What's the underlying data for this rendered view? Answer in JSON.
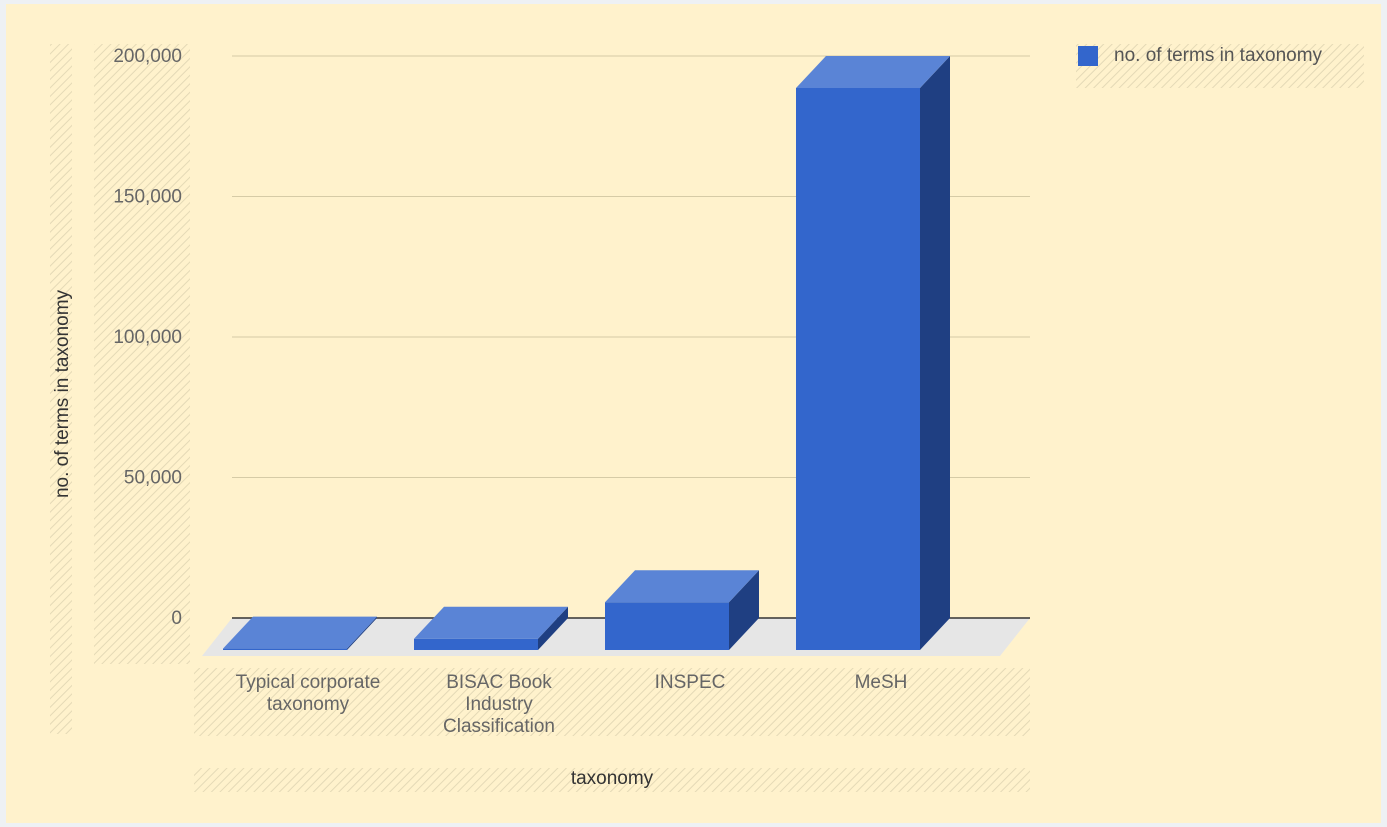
{
  "chart_data": {
    "type": "bar",
    "style": "3d",
    "categories": [
      "Typical corporate taxonomy",
      "BISAC Book Industry Classification",
      "INSPEC",
      "MeSH"
    ],
    "category_lines": [
      [
        "Typical corporate",
        "taxonomy"
      ],
      [
        "BISAC Book",
        "Industry",
        "Classification"
      ],
      [
        "INSPEC"
      ],
      [
        "MeSH"
      ]
    ],
    "series": [
      {
        "name": "no. of terms in taxonomy",
        "values": [
          500,
          4000,
          17000,
          200000
        ]
      }
    ],
    "xlabel": "taxonomy",
    "ylabel": "no. of terms in taxonomy",
    "ylim": [
      0,
      200000
    ],
    "yticks": [
      0,
      50000,
      100000,
      150000,
      200000
    ],
    "ytick_labels": [
      "0",
      "50,000",
      "100,000",
      "150,000",
      "200,000"
    ],
    "grid": true,
    "legend_position": "top-right",
    "colors": {
      "bar_front": "#3366cc",
      "bar_top": "#5a84d6",
      "bar_side": "#1f3f82",
      "background": "#fff2cc",
      "gridline": "#d6cba6",
      "floor": "#e6e6e6"
    }
  }
}
